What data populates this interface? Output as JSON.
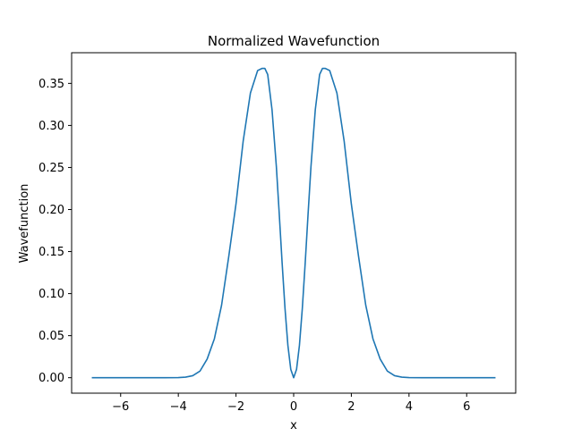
{
  "chart_data": {
    "type": "line",
    "title": "Normalized Wavefunction",
    "xlabel": "x",
    "ylabel": "Wavefunction",
    "xlim": [
      -7.7,
      7.7
    ],
    "ylim": [
      -0.0184,
      0.3865
    ],
    "x_ticks": [
      {
        "value": -6,
        "label": "−6"
      },
      {
        "value": -4,
        "label": "−4"
      },
      {
        "value": -2,
        "label": "−2"
      },
      {
        "value": 0,
        "label": "0"
      },
      {
        "value": 2,
        "label": "2"
      },
      {
        "value": 4,
        "label": "4"
      },
      {
        "value": 6,
        "label": "6"
      }
    ],
    "y_ticks": [
      {
        "value": 0.0,
        "label": "0.00"
      },
      {
        "value": 0.05,
        "label": "0.05"
      },
      {
        "value": 0.1,
        "label": "0.10"
      },
      {
        "value": 0.15,
        "label": "0.15"
      },
      {
        "value": 0.2,
        "label": "0.20"
      },
      {
        "value": 0.25,
        "label": "0.25"
      },
      {
        "value": 0.3,
        "label": "0.30"
      },
      {
        "value": 0.35,
        "label": "0.35"
      }
    ],
    "grid": false,
    "legend": "none",
    "series": [
      {
        "color": "#1f77b4",
        "points": [
          [
            -7.0,
            0.0
          ],
          [
            -6.0,
            0.0
          ],
          [
            -5.0,
            0.0
          ],
          [
            -4.5,
            0.0
          ],
          [
            -4.0,
            0.0001
          ],
          [
            -3.75,
            0.0007
          ],
          [
            -3.5,
            0.0024
          ],
          [
            -3.25,
            0.0078
          ],
          [
            -3.0,
            0.0222
          ],
          [
            -2.75,
            0.0462
          ],
          [
            -2.5,
            0.0862
          ],
          [
            -2.25,
            0.1443
          ],
          [
            -2.0,
            0.2066
          ],
          [
            -1.75,
            0.2816
          ],
          [
            -1.5,
            0.3385
          ],
          [
            -1.25,
            0.3653
          ],
          [
            -1.1,
            0.3678
          ],
          [
            -1.0,
            0.3679
          ],
          [
            -0.9,
            0.3606
          ],
          [
            -0.75,
            0.3187
          ],
          [
            -0.6,
            0.2509
          ],
          [
            -0.5,
            0.1947
          ],
          [
            -0.4,
            0.1363
          ],
          [
            -0.3,
            0.0822
          ],
          [
            -0.2,
            0.0384
          ],
          [
            -0.1,
            0.0099
          ],
          [
            0.0,
            0.0
          ],
          [
            0.1,
            0.0099
          ],
          [
            0.2,
            0.0384
          ],
          [
            0.3,
            0.0822
          ],
          [
            0.4,
            0.1363
          ],
          [
            0.5,
            0.1947
          ],
          [
            0.6,
            0.2509
          ],
          [
            0.75,
            0.3187
          ],
          [
            0.9,
            0.3606
          ],
          [
            1.0,
            0.3679
          ],
          [
            1.1,
            0.3678
          ],
          [
            1.25,
            0.3653
          ],
          [
            1.5,
            0.3385
          ],
          [
            1.75,
            0.2816
          ],
          [
            2.0,
            0.2066
          ],
          [
            2.25,
            0.1443
          ],
          [
            2.5,
            0.0862
          ],
          [
            2.75,
            0.0462
          ],
          [
            3.0,
            0.0222
          ],
          [
            3.25,
            0.0078
          ],
          [
            3.5,
            0.0024
          ],
          [
            3.75,
            0.0007
          ],
          [
            4.0,
            0.0001
          ],
          [
            4.5,
            0.0
          ],
          [
            5.0,
            0.0
          ],
          [
            6.0,
            0.0
          ],
          [
            7.0,
            0.0
          ]
        ]
      }
    ]
  }
}
